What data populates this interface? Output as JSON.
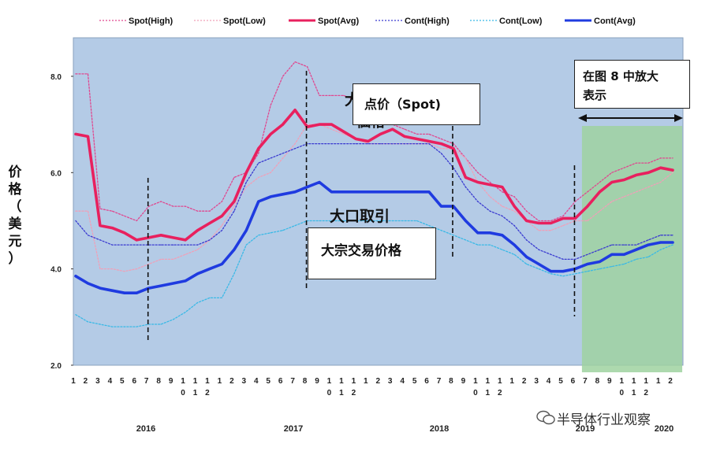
{
  "chart_data": {
    "type": "line",
    "ylabel": "价格（美元）",
    "ylim": [
      2.0,
      8.8
    ],
    "yticks": [
      "2.0",
      "4.0",
      "6.0",
      "8.0"
    ],
    "grid": false,
    "legend_position": "top",
    "month_ticks": [
      "1",
      "2",
      "3",
      "4",
      "5",
      "6",
      "7",
      "8",
      "9",
      "10",
      "11",
      "12",
      "1",
      "2",
      "3",
      "4",
      "5",
      "6",
      "7",
      "8",
      "9",
      "10",
      "11",
      "12",
      "1",
      "2",
      "3",
      "4",
      "5",
      "6",
      "7",
      "8",
      "9",
      "10",
      "11",
      "12",
      "1",
      "2",
      "3",
      "4",
      "5",
      "6",
      "7",
      "8",
      "9",
      "10",
      "11",
      "12",
      "1",
      "2"
    ],
    "years": [
      "2016",
      "2017",
      "2018",
      "2019",
      "2020"
    ],
    "x_start": "2016-01",
    "series": [
      {
        "name": "Spot(High)",
        "color": "#e0478f",
        "style": "dotted",
        "values": [
          8.05,
          8.05,
          5.25,
          5.2,
          5.1,
          5.0,
          5.3,
          5.4,
          5.3,
          5.3,
          5.2,
          5.2,
          5.4,
          5.9,
          6.0,
          6.4,
          7.4,
          8.0,
          8.3,
          8.2,
          7.6,
          7.6,
          7.6,
          7.5,
          7.2,
          7.0,
          7.0,
          6.9,
          6.8,
          6.8,
          6.7,
          6.6,
          6.3,
          6.0,
          5.8,
          5.6,
          5.5,
          5.2,
          5.0,
          5.0,
          5.1,
          5.4,
          5.6,
          5.8,
          6.0,
          6.1,
          6.2,
          6.2,
          6.3,
          6.3
        ]
      },
      {
        "name": "Spot(Low)",
        "color": "#f0a0b8",
        "style": "dotted",
        "values": [
          5.2,
          5.2,
          4.0,
          4.0,
          3.95,
          4.0,
          4.1,
          4.2,
          4.2,
          4.3,
          4.4,
          4.6,
          4.9,
          5.3,
          5.7,
          5.9,
          6.0,
          6.3,
          6.6,
          7.0,
          7.0,
          6.9,
          6.8,
          6.7,
          6.6,
          6.6,
          6.6,
          6.6,
          6.6,
          6.6,
          6.5,
          6.5,
          6.3,
          5.8,
          5.5,
          5.3,
          5.2,
          5.0,
          4.8,
          4.8,
          4.9,
          5.0,
          5.0,
          5.2,
          5.4,
          5.5,
          5.6,
          5.7,
          5.8,
          6.0
        ]
      },
      {
        "name": "Spot(Avg)",
        "color": "#e8205e",
        "style": "solid-thick",
        "values": [
          6.8,
          6.75,
          4.9,
          4.85,
          4.75,
          4.6,
          4.65,
          4.7,
          4.65,
          4.6,
          4.8,
          4.95,
          5.1,
          5.4,
          6.0,
          6.5,
          6.8,
          7.0,
          7.3,
          6.95,
          7.0,
          7.0,
          6.85,
          6.7,
          6.65,
          6.8,
          6.9,
          6.75,
          6.7,
          6.65,
          6.6,
          6.5,
          5.9,
          5.8,
          5.75,
          5.7,
          5.3,
          5.0,
          4.95,
          4.95,
          5.05,
          5.05,
          5.3,
          5.6,
          5.8,
          5.85,
          5.95,
          6.0,
          6.1,
          6.05
        ]
      },
      {
        "name": "Cont(High)",
        "color": "#3a3ad0",
        "style": "dotted",
        "values": [
          5.0,
          4.7,
          4.6,
          4.5,
          4.5,
          4.5,
          4.5,
          4.5,
          4.5,
          4.5,
          4.5,
          4.6,
          4.8,
          5.2,
          5.8,
          6.2,
          6.3,
          6.4,
          6.5,
          6.6,
          6.6,
          6.6,
          6.6,
          6.6,
          6.6,
          6.6,
          6.6,
          6.6,
          6.6,
          6.6,
          6.4,
          6.1,
          5.7,
          5.4,
          5.2,
          5.1,
          4.9,
          4.6,
          4.4,
          4.3,
          4.2,
          4.2,
          4.3,
          4.4,
          4.5,
          4.5,
          4.5,
          4.6,
          4.7,
          4.7
        ]
      },
      {
        "name": "Cont(Low)",
        "color": "#39b9e6",
        "style": "dotted",
        "values": [
          3.05,
          2.9,
          2.85,
          2.8,
          2.8,
          2.8,
          2.85,
          2.85,
          2.95,
          3.1,
          3.3,
          3.4,
          3.4,
          3.9,
          4.5,
          4.7,
          4.75,
          4.8,
          4.9,
          5.0,
          5.0,
          5.0,
          5.0,
          5.0,
          5.0,
          5.0,
          5.0,
          5.0,
          5.0,
          4.9,
          4.8,
          4.7,
          4.6,
          4.5,
          4.5,
          4.4,
          4.3,
          4.1,
          4.0,
          3.9,
          3.85,
          3.9,
          3.95,
          4.0,
          4.05,
          4.1,
          4.2,
          4.25,
          4.4,
          4.5
        ]
      },
      {
        "name": "Cont(Avg)",
        "color": "#1f3be0",
        "style": "solid-thick",
        "values": [
          3.85,
          3.7,
          3.6,
          3.55,
          3.5,
          3.5,
          3.6,
          3.65,
          3.7,
          3.75,
          3.9,
          4.0,
          4.1,
          4.4,
          4.8,
          5.4,
          5.5,
          5.55,
          5.6,
          5.7,
          5.8,
          5.6,
          5.6,
          5.6,
          5.6,
          5.6,
          5.6,
          5.6,
          5.6,
          5.6,
          5.3,
          5.3,
          5.0,
          4.75,
          4.75,
          4.7,
          4.5,
          4.25,
          4.1,
          3.95,
          3.95,
          4.0,
          4.1,
          4.15,
          4.3,
          4.3,
          4.4,
          4.5,
          4.55,
          4.55
        ]
      }
    ],
    "dividers_at_month": [
      "2016-07",
      "2017-08",
      "2018-08",
      "2019-06"
    ],
    "highlight_region": {
      "from": "2019-07",
      "to": "2020-02",
      "color": "#8fcc8f"
    }
  },
  "annotations": {
    "zoom_box": "在图 8 中放大表示",
    "zoom_box_lines": [
      "在图 8 中放大",
      "表示"
    ],
    "spot_box": "点价（Spot)",
    "spot_ghost_1": "大",
    "spot_ghost_2": "価格",
    "bulk_over": "大口取引",
    "bulk_box": "大宗交易价格"
  },
  "ylabel_chars": [
    "价",
    "格",
    "（",
    "美",
    "元",
    "）"
  ],
  "watermark": "半导体行业观察",
  "colors": {
    "plot_bg": "#b4cbe6",
    "highlight": "#9fd2a0"
  }
}
